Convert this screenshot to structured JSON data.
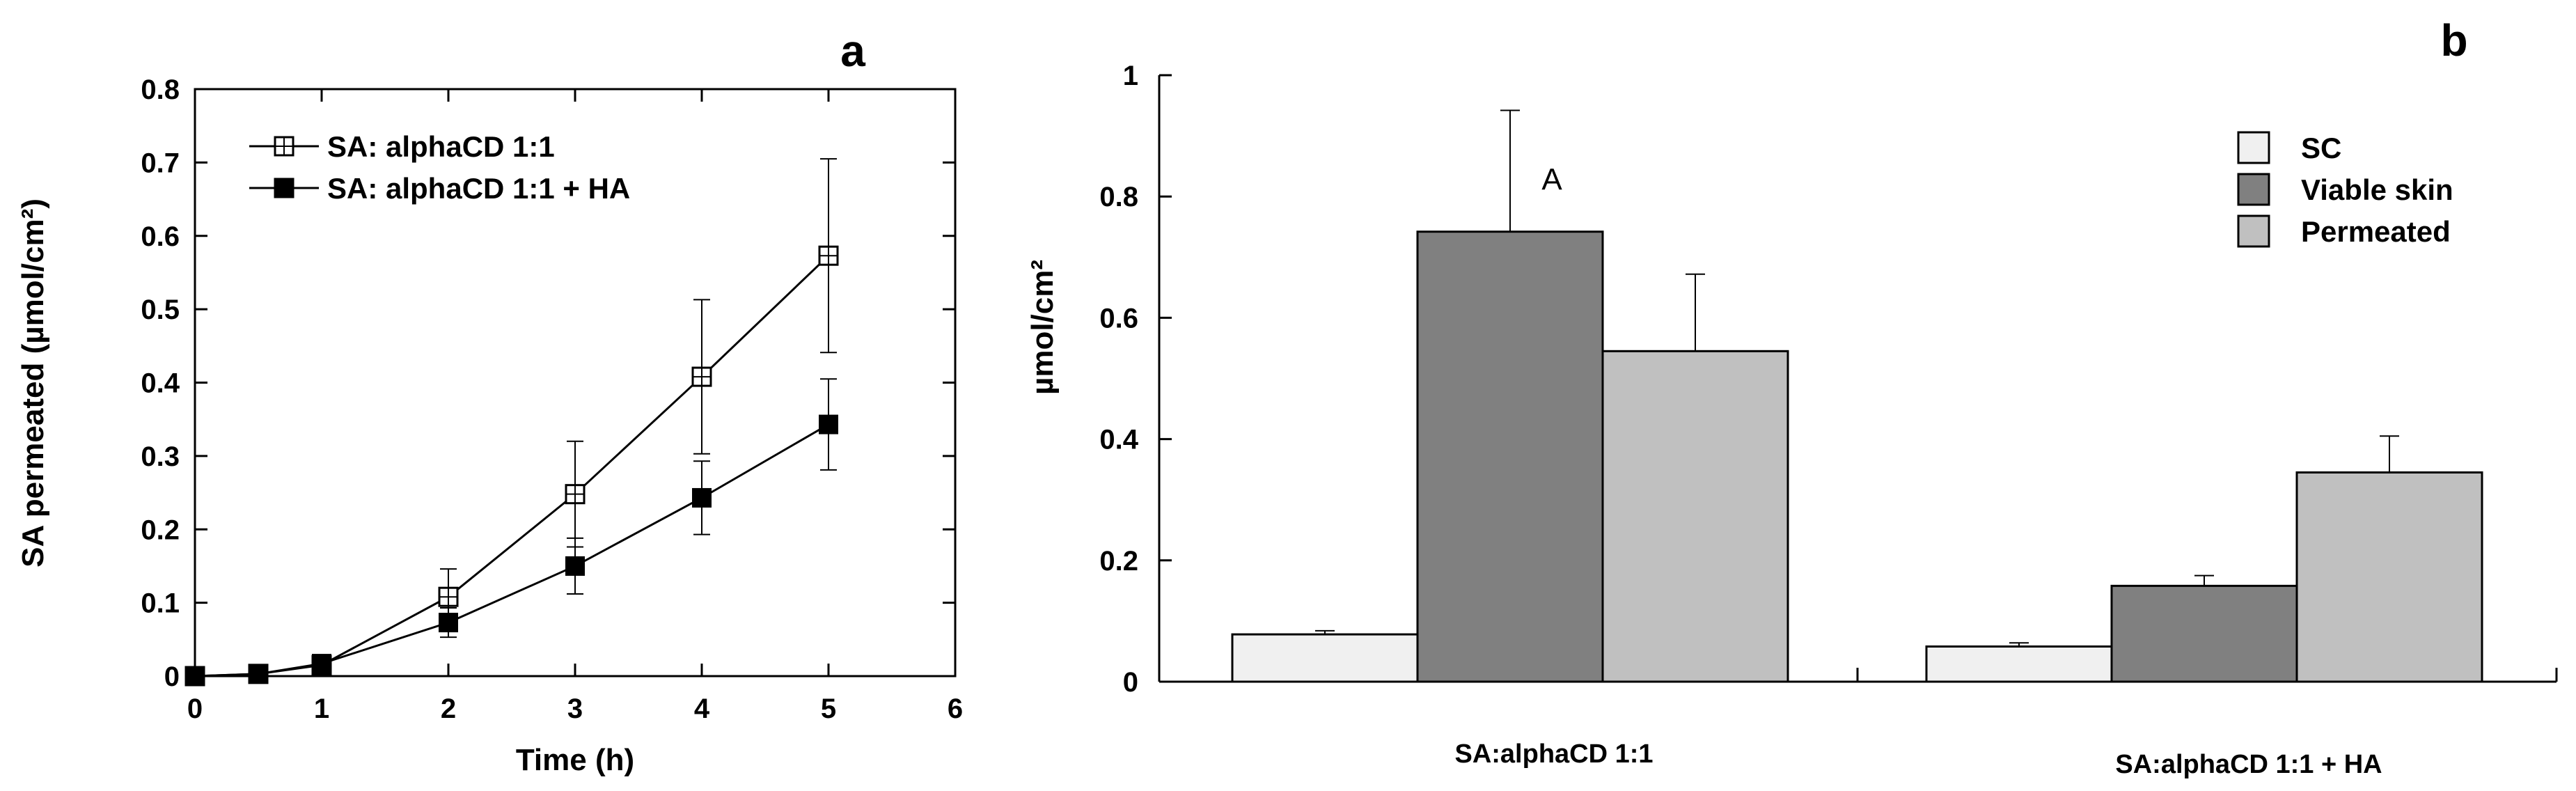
{
  "chart_data": [
    {
      "type": "line",
      "panel_label": "a",
      "xlabel": "Time (h)",
      "ylabel": "SA permeated (µmol/cm²)",
      "xlim": [
        0,
        6
      ],
      "ylim": [
        0,
        0.8
      ],
      "xticks": [
        "0",
        "1",
        "2",
        "3",
        "4",
        "5",
        "6"
      ],
      "yticks": [
        "0",
        "0.1",
        "0.2",
        "0.3",
        "0.4",
        "0.5",
        "0.6",
        "0.7",
        "0.8"
      ],
      "legend_position": "top-left",
      "grid": false,
      "series": [
        {
          "name": "SA: alphaCD 1:1",
          "marker": "open-square-cross",
          "x": [
            0,
            0.5,
            1,
            2,
            3,
            4,
            5
          ],
          "y": [
            0,
            0.003,
            0.015,
            0.108,
            0.248,
            0.408,
            0.573
          ],
          "error": [
            0,
            0,
            0.005,
            0.038,
            0.072,
            0.105,
            0.132
          ]
        },
        {
          "name": "SA: alphaCD 1:1 + HA",
          "marker": "filled-square",
          "x": [
            0,
            0.5,
            1,
            2,
            3,
            4,
            5
          ],
          "y": [
            0,
            0.003,
            0.017,
            0.073,
            0.15,
            0.243,
            0.343
          ],
          "error": [
            0,
            0,
            0.005,
            0.02,
            0.038,
            0.05,
            0.062
          ]
        }
      ]
    },
    {
      "type": "bar",
      "panel_label": "b",
      "xlabel": "",
      "ylabel": "µmol/cm²",
      "ylim": [
        0,
        1
      ],
      "yticks": [
        "0",
        "0.2",
        "0.4",
        "0.6",
        "0.8",
        "1"
      ],
      "categories": [
        "SA:alphaCD 1:1",
        "SA:alphaCD 1:1 + HA"
      ],
      "legend_position": "top-right",
      "grid": false,
      "series": [
        {
          "name": "SC",
          "color": "#f0f0f0",
          "values": [
            0.078,
            0.058
          ],
          "error": [
            0.006,
            0.006
          ]
        },
        {
          "name": "Viable skin",
          "color": "#808080",
          "values": [
            0.742,
            0.158
          ],
          "error": [
            0.2,
            0.017
          ]
        },
        {
          "name": "Permeated",
          "color": "#c0c0c0",
          "values": [
            0.545,
            0.345
          ],
          "error": [
            0.127,
            0.06
          ]
        }
      ],
      "annotations": [
        {
          "text": "A",
          "category": 0,
          "series": 1
        }
      ]
    }
  ]
}
